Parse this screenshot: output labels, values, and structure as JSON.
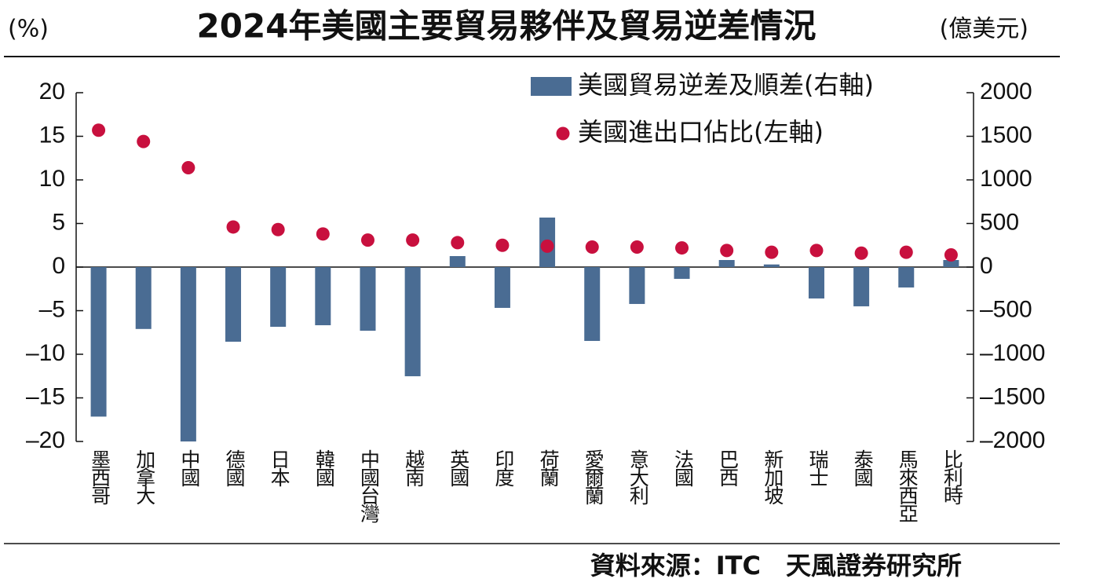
{
  "chart_data": {
    "type": "bar",
    "title": "2024年美國主要貿易夥伴及貿易逆差情況",
    "left_unit": "(%)",
    "right_unit": "(億美元)",
    "source": "資料來源：ITC　天風證券研究所",
    "categories": [
      "墨西哥",
      "加拿大",
      "中國",
      "德國",
      "日本",
      "韓國",
      "中國台灣",
      "越南",
      "英國",
      "印度",
      "荷蘭",
      "愛爾蘭",
      "意大利",
      "法國",
      "巴西",
      "新加坡",
      "瑞士",
      "泰國",
      "馬來西亞",
      "比利時"
    ],
    "series": [
      {
        "name": "美國貿易逆差及順差(右軸)",
        "type": "bar",
        "axis": "y2",
        "color": "#4a6c93",
        "values": [
          -1715,
          -710,
          -2000,
          -856,
          -685,
          -667,
          -730,
          -1252,
          126,
          -468,
          568,
          -847,
          -423,
          -135,
          81,
          30,
          -360,
          -450,
          -234,
          81
        ]
      },
      {
        "name": "美國進出口佔比(左軸)",
        "type": "scatter",
        "axis": "y",
        "color": "#c8103e",
        "values": [
          15.7,
          14.4,
          11.4,
          4.6,
          4.3,
          3.8,
          3.1,
          3.1,
          2.8,
          2.5,
          2.4,
          2.3,
          2.3,
          2.2,
          1.9,
          1.7,
          1.9,
          1.6,
          1.7,
          1.4
        ]
      }
    ],
    "ylim": [
      -20,
      20
    ],
    "yticks": [
      {
        "value": -20,
        "label": "–20"
      },
      {
        "value": -15,
        "label": "–15"
      },
      {
        "value": -10,
        "label": "–10"
      },
      {
        "value": -5,
        "label": "–5"
      },
      0,
      5,
      10,
      15,
      20
    ],
    "y2lim": [
      -2000,
      2000
    ],
    "y2ticks": [
      {
        "value": -2000,
        "label": "–2000"
      },
      {
        "value": -1500,
        "label": "–1500"
      },
      {
        "value": -1000,
        "label": "–1000"
      },
      {
        "value": -500,
        "label": "–500"
      },
      0,
      500,
      1000,
      1500,
      2000
    ]
  }
}
